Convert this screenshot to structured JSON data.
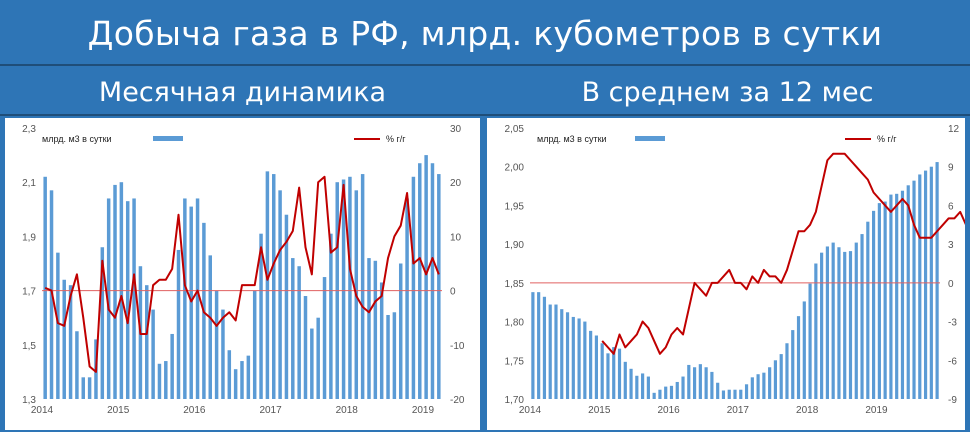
{
  "header": {
    "title": "Добыча газа в РФ, млрд. кубометров в сутки",
    "left_subtitle": "Месячная динамика",
    "right_subtitle": "В среднем за 12 мес"
  },
  "colors": {
    "background": "#2e75b6",
    "bar": "#5b9bd5",
    "line": "#c00000",
    "zero_line": "#e06060"
  },
  "chart_data": [
    {
      "type": "bar",
      "title": "",
      "legend": {
        "bar_label": "млрд. м3 в сутки",
        "line_label": "% г/г",
        "placement": "top"
      },
      "x_tick_labels": [
        "2014",
        "2015",
        "2016",
        "2017",
        "2018",
        "2019"
      ],
      "y_left": {
        "min": 1.3,
        "max": 2.3,
        "ticks": [
          "2,3",
          "2,1",
          "1,9",
          "1,7",
          "1,5",
          "1,3"
        ]
      },
      "y_right": {
        "min": -20,
        "max": 30,
        "ticks": [
          "30",
          "20",
          "10",
          "0",
          "-10",
          "-20"
        ]
      },
      "start": "2014-01",
      "series": [
        {
          "name": "млрд. м3 в сутки",
          "type": "bar",
          "axis": "left",
          "values": [
            2.12,
            2.07,
            1.84,
            1.74,
            1.72,
            1.55,
            1.38,
            1.38,
            1.52,
            1.86,
            2.04,
            2.09,
            2.1,
            2.03,
            2.04,
            1.79,
            1.72,
            1.63,
            1.43,
            1.44,
            1.54,
            1.85,
            2.04,
            2.01,
            2.04,
            1.95,
            1.83,
            1.7,
            1.63,
            1.48,
            1.41,
            1.44,
            1.46,
            1.7,
            1.91,
            2.14,
            2.13,
            2.07,
            1.98,
            1.82,
            1.79,
            1.68,
            1.56,
            1.6,
            1.75,
            1.91,
            2.1,
            2.11,
            2.12,
            2.07,
            2.13,
            1.82,
            1.81,
            1.73,
            1.61,
            1.62,
            1.8,
            2.04,
            2.12,
            2.17,
            2.2,
            2.17,
            2.13
          ]
        },
        {
          "name": "% г/г",
          "type": "line",
          "axis": "right",
          "values": [
            0.5,
            0,
            -6,
            -6.5,
            -1,
            3,
            -5,
            -14,
            -15,
            5.5,
            -3.5,
            -5,
            -1,
            -6,
            3,
            -8,
            -8,
            1,
            2,
            2,
            4,
            14,
            1,
            -2,
            0,
            -4,
            -5,
            -6.5,
            -5,
            -4,
            -5.5,
            1,
            1,
            1,
            8,
            2,
            5,
            7.5,
            9,
            11,
            19,
            8,
            3,
            20,
            21,
            7,
            8,
            19.5,
            4,
            -1,
            -3,
            -4,
            -2,
            -1,
            6,
            10,
            12,
            18,
            5,
            6,
            3,
            6,
            3
          ]
        }
      ]
    },
    {
      "type": "bar",
      "title": "",
      "legend": {
        "bar_label": "млрд. м3 в сутки",
        "line_label": "% г/г",
        "placement": "top"
      },
      "x_tick_labels": [
        "2014",
        "2015",
        "2016",
        "2017",
        "2018",
        "2019"
      ],
      "y_left": {
        "min": 1.7,
        "max": 2.05,
        "ticks": [
          "2,05",
          "2,00",
          "1,95",
          "1,90",
          "1,85",
          "1,80",
          "1,75",
          "1,70"
        ]
      },
      "y_right": {
        "min": -9,
        "max": 12,
        "ticks": [
          "12",
          "9",
          "6",
          "3",
          "0",
          "-3",
          "-6",
          "-9"
        ]
      },
      "start": "2014-01",
      "series": [
        {
          "name": "млрд. м3 в сутки",
          "type": "bar",
          "axis": "left",
          "values": [
            1.838,
            1.838,
            1.832,
            1.822,
            1.822,
            1.816,
            1.812,
            1.806,
            1.804,
            1.8,
            1.788,
            1.782,
            1.772,
            1.759,
            1.767,
            1.765,
            1.748,
            1.739,
            1.73,
            1.733,
            1.729,
            1.708,
            1.712,
            1.716,
            1.717,
            1.722,
            1.729,
            1.744,
            1.741,
            1.745,
            1.741,
            1.735,
            1.721,
            1.711,
            1.712,
            1.712,
            1.712,
            1.719,
            1.728,
            1.732,
            1.734,
            1.741,
            1.75,
            1.758,
            1.772,
            1.789,
            1.807,
            1.826,
            1.849,
            1.875,
            1.889,
            1.897,
            1.902,
            1.896,
            1.89,
            1.891,
            1.902,
            1.913,
            1.929,
            1.943,
            1.953,
            1.955,
            1.964,
            1.965,
            1.969,
            1.976,
            1.982,
            1.99,
            1.995,
            2.0,
            2.006
          ]
        },
        {
          "name": "% г/г",
          "type": "line",
          "axis": "right",
          "x_start_index": 12,
          "values": [
            -4.5,
            -5,
            -5.5,
            -4,
            -5,
            -4.5,
            -4,
            -3,
            -3.5,
            -4.5,
            -5.5,
            -5,
            -4,
            -3.5,
            -4,
            -2,
            0,
            -0.5,
            -1,
            0,
            0,
            0.5,
            1,
            0,
            0,
            -0.5,
            0.5,
            0,
            1,
            0.5,
            0.5,
            0,
            1,
            2.5,
            4,
            4,
            4.5,
            5.5,
            7.5,
            9.5,
            10,
            10,
            10,
            9.5,
            9,
            8.5,
            8,
            7,
            6.5,
            6,
            5.5,
            6,
            6.5,
            6,
            4.5,
            3.5,
            3.5,
            3.5,
            4,
            4.5,
            5,
            5,
            5.5,
            4.5,
            4
          ]
        }
      ]
    }
  ]
}
